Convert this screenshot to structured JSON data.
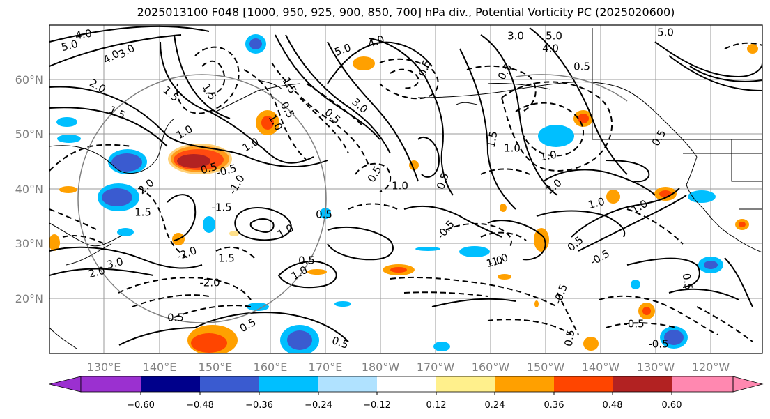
{
  "title": "2025013100 F048 [1000, 950, 925, 900, 850, 700] hPa div., Potential Vorticity PC (2025020600)",
  "lat_labels": [
    "60°N",
    "50°N",
    "40°N",
    "30°N",
    "20°N"
  ],
  "lon_labels": [
    "130°E",
    "140°E",
    "150°E",
    "160°E",
    "170°E",
    "180°W",
    "170°W",
    "160°W",
    "150°W",
    "140°W",
    "130°W",
    "120°W"
  ],
  "colorbar": {
    "ticks": [
      "−0.60",
      "−0.48",
      "−0.36",
      "−0.24",
      "−0.12",
      "0.12",
      "0.24",
      "0.36",
      "0.48",
      "0.60"
    ],
    "colors": [
      "#9b30d0",
      "#00008b",
      "#3a5bd0",
      "#00bfff",
      "#b0e2ff",
      "#ffffff",
      "#fff08c",
      "#ffa000",
      "#ff4500",
      "#b22222",
      "#ff88b0"
    ]
  },
  "contour_labels": [
    "5.0",
    "4.0",
    "4.0",
    "3.0",
    "2.0",
    "1.5",
    "1.5",
    "1.0",
    "1.0",
    "0.5",
    "-0.5",
    "-1.0",
    "-1.5",
    "-2.0",
    "-2.0",
    "3.0",
    "2.0",
    "1.5",
    "1.0",
    "0.5",
    "1.0",
    "0.5",
    "1.5",
    "2.0",
    "5.0",
    "4.0",
    "3.0",
    "0.5",
    "1.5",
    "0.5",
    "1.0",
    "1.5",
    "0.5",
    "1.0",
    "0.5",
    "0.5",
    "-0.5",
    "1.0",
    "2.0",
    "1.0",
    "0.5",
    "5.0",
    "4.0",
    "3.0",
    "5.0",
    "1.5",
    "1.0",
    "0.5",
    "0.5",
    "1.0",
    "-0.5",
    "-1.0",
    "1.0",
    "0.5",
    "0.5",
    "-0.5",
    "-0.5",
    "0.5",
    "-0.5",
    "0.5",
    "0.5",
    "0.5"
  ]
}
